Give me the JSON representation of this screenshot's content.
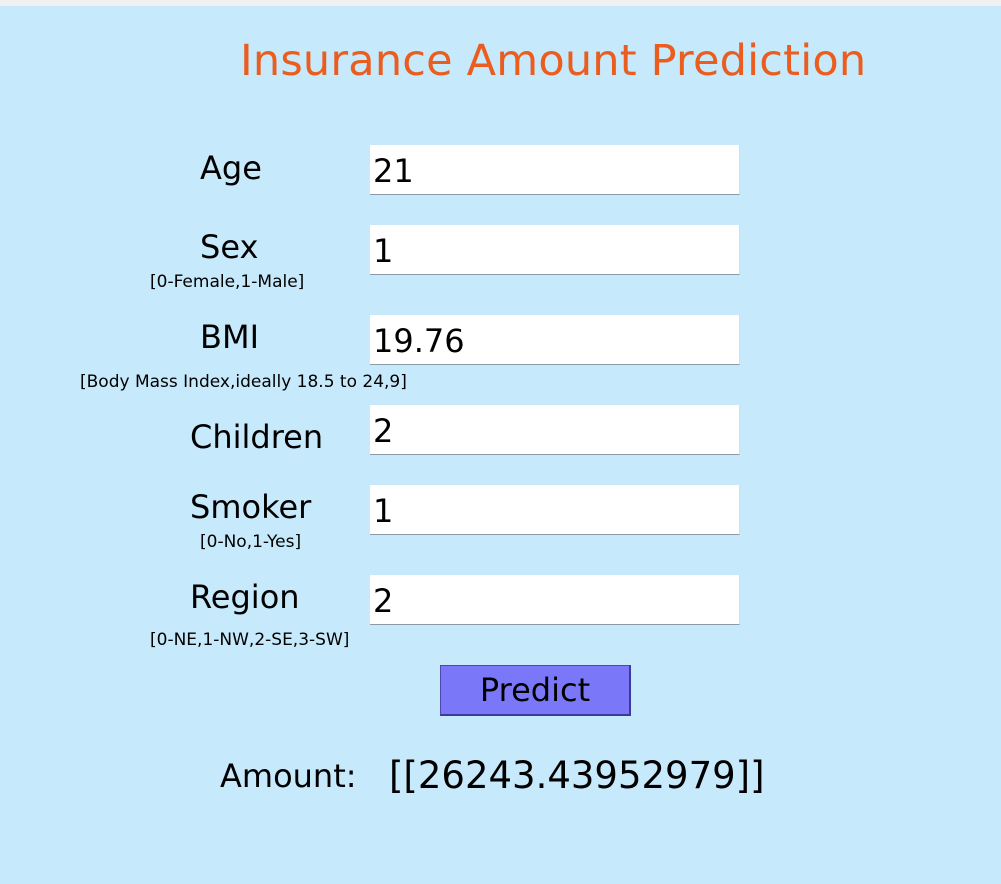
{
  "title": "Insurance Amount Prediction",
  "fields": {
    "age": {
      "label": "Age",
      "value": "21"
    },
    "sex": {
      "label": "Sex",
      "hint": "[0-Female,1-Male]",
      "value": "1"
    },
    "bmi": {
      "label": "BMI",
      "hint": "[Body Mass Index,ideally 18.5 to 24,9]",
      "value": "19.76"
    },
    "children": {
      "label": "Children",
      "value": "2"
    },
    "smoker": {
      "label": "Smoker",
      "hint": "[0-No,1-Yes]",
      "value": "1"
    },
    "region": {
      "label": "Region",
      "hint": "[0-NE,1-NW,2-SE,3-SW]",
      "value": "2"
    }
  },
  "predict_button": {
    "label": "Predict"
  },
  "result": {
    "label": "Amount:",
    "value": "[[26243.43952979]]"
  },
  "colors": {
    "background": "#c6e9fb",
    "title": "#ea5d1f",
    "button": "#7a78f8",
    "field": "#ffffff"
  }
}
